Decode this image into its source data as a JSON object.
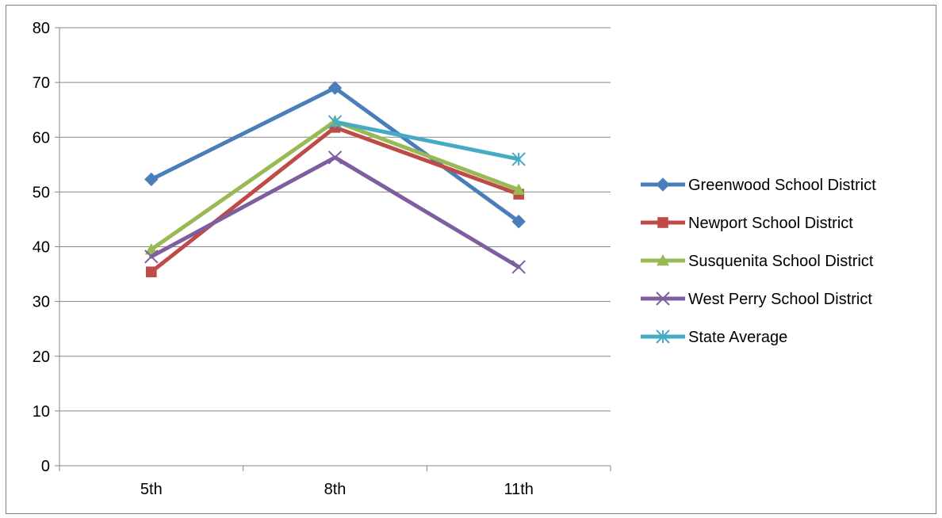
{
  "chart_data": {
    "type": "line",
    "title": "",
    "xlabel": "",
    "ylabel": "",
    "categories": [
      "5th",
      "8th",
      "11th"
    ],
    "ylim": [
      0,
      80
    ],
    "y_ticks": [
      "0",
      "10",
      "20",
      "30",
      "40",
      "50",
      "60",
      "70",
      "80"
    ],
    "grid": true,
    "legend_position": "right",
    "series": [
      {
        "name": "Greenwood School District",
        "values": [
          52.3,
          69.0,
          44.6
        ],
        "color": "#4a7ebb",
        "marker": "diamond"
      },
      {
        "name": "Newport School District",
        "values": [
          35.4,
          61.8,
          49.6
        ],
        "color": "#be4b48",
        "marker": "square"
      },
      {
        "name": "Susquenita School District",
        "values": [
          39.5,
          62.9,
          50.4
        ],
        "color": "#98b954",
        "marker": "triangle"
      },
      {
        "name": "West Perry School District",
        "values": [
          38.2,
          56.3,
          36.3
        ],
        "color": "#7d5fa0",
        "marker": "x"
      },
      {
        "name": "State Average",
        "values": [
          null,
          62.8,
          56.0
        ],
        "color": "#46aac5",
        "marker": "star"
      }
    ]
  }
}
